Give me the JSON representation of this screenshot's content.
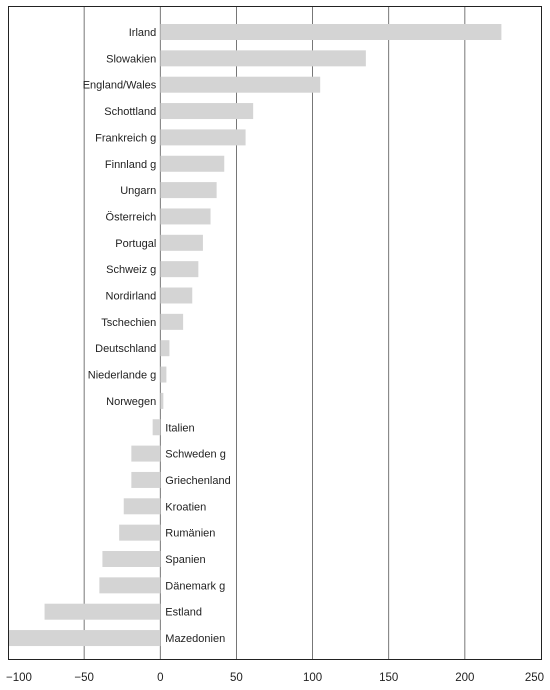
{
  "chart_data": {
    "type": "bar",
    "orientation": "horizontal",
    "title": "",
    "xlabel": "",
    "ylabel": "",
    "categories": [
      "Irland",
      "Slowakien",
      "England/Wales",
      "Schottland",
      "Frankreich g",
      "Finnland g",
      "Ungarn",
      "Österreich",
      "Portugal",
      "Schweiz g",
      "Nordirland",
      "Tschechien",
      "Deutschland",
      "Niederlande g",
      "Norwegen",
      "Italien",
      "Schweden g",
      "Griechenland",
      "Kroatien",
      "Rumänien",
      "Spanien",
      "Dänemark g",
      "Estland",
      "Mazedonien"
    ],
    "values": [
      224,
      135,
      105,
      61,
      56,
      42,
      37,
      33,
      28,
      25,
      21,
      15,
      6,
      4,
      2,
      -5,
      -19,
      -19,
      -24,
      -27,
      -38,
      -40,
      -76,
      -100
    ],
    "xlim": [
      -100,
      250
    ],
    "xticks": [
      -100,
      -50,
      0,
      50,
      100,
      150,
      200,
      250
    ],
    "xtick_labels": [
      "−100",
      "−50",
      "0",
      "50",
      "100",
      "150",
      "200",
      "250"
    ],
    "grid": true,
    "bar_color": "#d4d4d4"
  }
}
